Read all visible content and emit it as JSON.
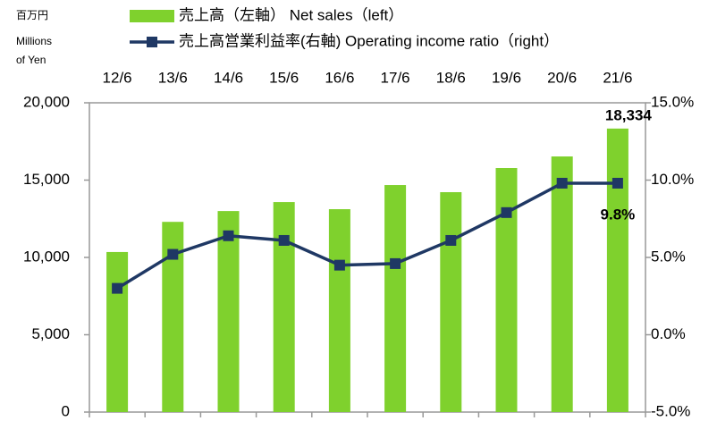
{
  "chart_data": {
    "type": "bar",
    "ylabel": [
      "百万円",
      "Millions",
      "of Yen"
    ],
    "categories": [
      "12/6",
      "13/6",
      "14/6",
      "15/6",
      "16/6",
      "17/6",
      "18/6",
      "19/6",
      "20/6",
      "21/6"
    ],
    "series": [
      {
        "name": "売上高（左軸）  Net sales（left）",
        "color": "#7fd12d",
        "type": "bar",
        "values": [
          10350,
          12300,
          13000,
          13580,
          13120,
          14680,
          14220,
          15780,
          16530,
          18334
        ],
        "value_labels": [
          null,
          null,
          null,
          null,
          null,
          null,
          null,
          null,
          null,
          "18,334"
        ]
      },
      {
        "name": "売上高営業利益率(右軸)  Operating income ratio（right）",
        "color": "#1f3864",
        "type": "line",
        "axis": "y2",
        "values": [
          3.0,
          5.2,
          6.4,
          6.1,
          4.5,
          4.6,
          6.1,
          7.9,
          9.8,
          9.8
        ],
        "value_labels": [
          null,
          null,
          null,
          null,
          null,
          null,
          null,
          null,
          null,
          "9.8%"
        ]
      }
    ],
    "ylim": [
      0,
      20000
    ],
    "yticks": [
      0,
      {
        "value": 5000,
        "label": "5,000"
      },
      {
        "value": 10000,
        "label": "10,000"
      },
      {
        "value": 15000,
        "label": "15,000"
      },
      {
        "value": 20000,
        "label": "20,000"
      }
    ],
    "y2lim": [
      -5,
      15
    ],
    "y2ticks": [
      {
        "value": -5,
        "label": "-5.0%"
      },
      {
        "value": 0,
        "label": "0.0%"
      },
      {
        "value": 5,
        "label": "5.0%"
      },
      {
        "value": 10,
        "label": "10.0%"
      },
      {
        "value": 15,
        "label": "15.0%"
      }
    ],
    "grid": false
  }
}
